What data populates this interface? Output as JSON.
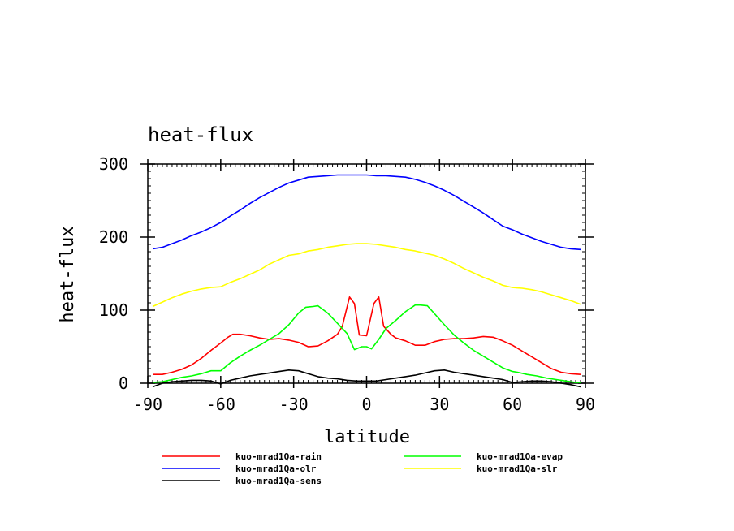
{
  "chart_data": {
    "type": "line",
    "title": "heat-flux",
    "xlabel": "latitude",
    "ylabel": "heat-flux",
    "xlim": [
      -90,
      90
    ],
    "ylim": [
      0,
      300
    ],
    "x_ticks": [
      "-90",
      "-60",
      "-30",
      "0",
      "30",
      "60",
      "90"
    ],
    "y_ticks": [
      "0",
      "100",
      "200",
      "300"
    ],
    "grid": false,
    "legend_position": "bottom",
    "series": [
      {
        "name": "kuo-mrad1Qa-rain",
        "color": "#ff0000",
        "x": [
          -88,
          -84,
          -80,
          -76,
          -72,
          -68,
          -64,
          -60,
          -57,
          -55,
          -52,
          -48,
          -44,
          -40,
          -36,
          -32,
          -28,
          -24,
          -20,
          -16,
          -12,
          -10,
          -7,
          -5,
          -3,
          0,
          3,
          5,
          7,
          10,
          12,
          16,
          20,
          24,
          28,
          32,
          36,
          40,
          44,
          48,
          52,
          56,
          60,
          64,
          68,
          72,
          76,
          80,
          84,
          88
        ],
        "y": [
          12,
          12,
          15,
          19,
          25,
          34,
          45,
          55,
          63,
          67,
          67,
          65,
          62,
          60,
          61,
          59,
          56,
          50,
          51,
          58,
          67,
          78,
          118,
          109,
          66,
          65,
          109,
          118,
          78,
          67,
          62,
          58,
          52,
          52,
          57,
          60,
          61,
          61,
          62,
          64,
          63,
          58,
          52,
          44,
          36,
          28,
          20,
          15,
          13,
          12
        ]
      },
      {
        "name": "kuo-mrad1Qa-olr",
        "color": "#0000ff",
        "x": [
          -88,
          -84,
          -80,
          -76,
          -72,
          -68,
          -64,
          -60,
          -56,
          -52,
          -48,
          -44,
          -40,
          -36,
          -32,
          -28,
          -24,
          -20,
          -16,
          -12,
          -8,
          -4,
          0,
          4,
          8,
          12,
          16,
          20,
          24,
          28,
          32,
          36,
          40,
          44,
          48,
          52,
          56,
          60,
          64,
          68,
          72,
          76,
          80,
          84,
          88
        ],
        "y": [
          184,
          186,
          191,
          196,
          202,
          207,
          213,
          220,
          229,
          237,
          246,
          254,
          261,
          268,
          274,
          278,
          282,
          283,
          284,
          285,
          285,
          285,
          285,
          284,
          284,
          283,
          282,
          279,
          275,
          270,
          264,
          257,
          249,
          241,
          233,
          224,
          215,
          210,
          204,
          199,
          194,
          190,
          186,
          184,
          183
        ]
      },
      {
        "name": "kuo-mrad1Qa-sens",
        "color": "#000000",
        "x": [
          -88,
          -84,
          -80,
          -76,
          -72,
          -68,
          -64,
          -60,
          -56,
          -52,
          -48,
          -44,
          -40,
          -36,
          -32,
          -28,
          -24,
          -20,
          -16,
          -12,
          -8,
          -4,
          0,
          4,
          8,
          12,
          16,
          20,
          24,
          28,
          32,
          36,
          40,
          44,
          48,
          52,
          56,
          60,
          64,
          68,
          72,
          76,
          80,
          84,
          88
        ],
        "y": [
          -5,
          0,
          2,
          3,
          4,
          4,
          3,
          -1,
          4,
          7,
          10,
          12,
          14,
          16,
          18,
          17,
          13,
          9,
          7,
          6,
          4,
          3,
          3,
          3,
          5,
          7,
          9,
          11,
          14,
          17,
          18,
          15,
          13,
          11,
          9,
          7,
          5,
          1,
          2,
          3,
          3,
          2,
          0,
          -2,
          -5
        ]
      },
      {
        "name": "kuo-mrad1Qa-evap",
        "color": "#00ff00",
        "x": [
          -88,
          -84,
          -80,
          -76,
          -72,
          -68,
          -64,
          -60,
          -56,
          -52,
          -48,
          -44,
          -40,
          -36,
          -32,
          -28,
          -25,
          -22,
          -20,
          -16,
          -12,
          -8,
          -5,
          -2,
          0,
          2,
          5,
          8,
          12,
          16,
          20,
          22,
          25,
          28,
          32,
          36,
          40,
          44,
          48,
          52,
          56,
          60,
          62,
          66,
          70,
          74,
          78,
          82,
          86,
          88
        ],
        "y": [
          1,
          2,
          5,
          8,
          10,
          13,
          17,
          17,
          28,
          37,
          45,
          52,
          60,
          68,
          80,
          96,
          104,
          105,
          106,
          96,
          82,
          68,
          46,
          50,
          50,
          47,
          60,
          75,
          86,
          98,
          107,
          107,
          106,
          95,
          80,
          66,
          55,
          45,
          37,
          29,
          21,
          16,
          15,
          12,
          10,
          7,
          5,
          3,
          1,
          1
        ]
      },
      {
        "name": "kuo-mrad1Qa-slr",
        "color": "#ffff00",
        "x": [
          -88,
          -84,
          -80,
          -76,
          -72,
          -68,
          -64,
          -60,
          -56,
          -52,
          -48,
          -44,
          -40,
          -36,
          -32,
          -28,
          -24,
          -20,
          -16,
          -12,
          -8,
          -4,
          0,
          4,
          8,
          12,
          16,
          20,
          24,
          28,
          32,
          36,
          40,
          44,
          48,
          52,
          56,
          60,
          64,
          68,
          72,
          76,
          80,
          84,
          88
        ],
        "y": [
          105,
          111,
          117,
          122,
          126,
          129,
          131,
          132,
          138,
          143,
          149,
          155,
          163,
          169,
          175,
          177,
          181,
          183,
          186,
          188,
          190,
          191,
          191,
          190,
          188,
          186,
          183,
          181,
          178,
          175,
          170,
          164,
          157,
          151,
          145,
          140,
          134,
          131,
          130,
          128,
          125,
          121,
          117,
          113,
          108
        ]
      }
    ]
  }
}
